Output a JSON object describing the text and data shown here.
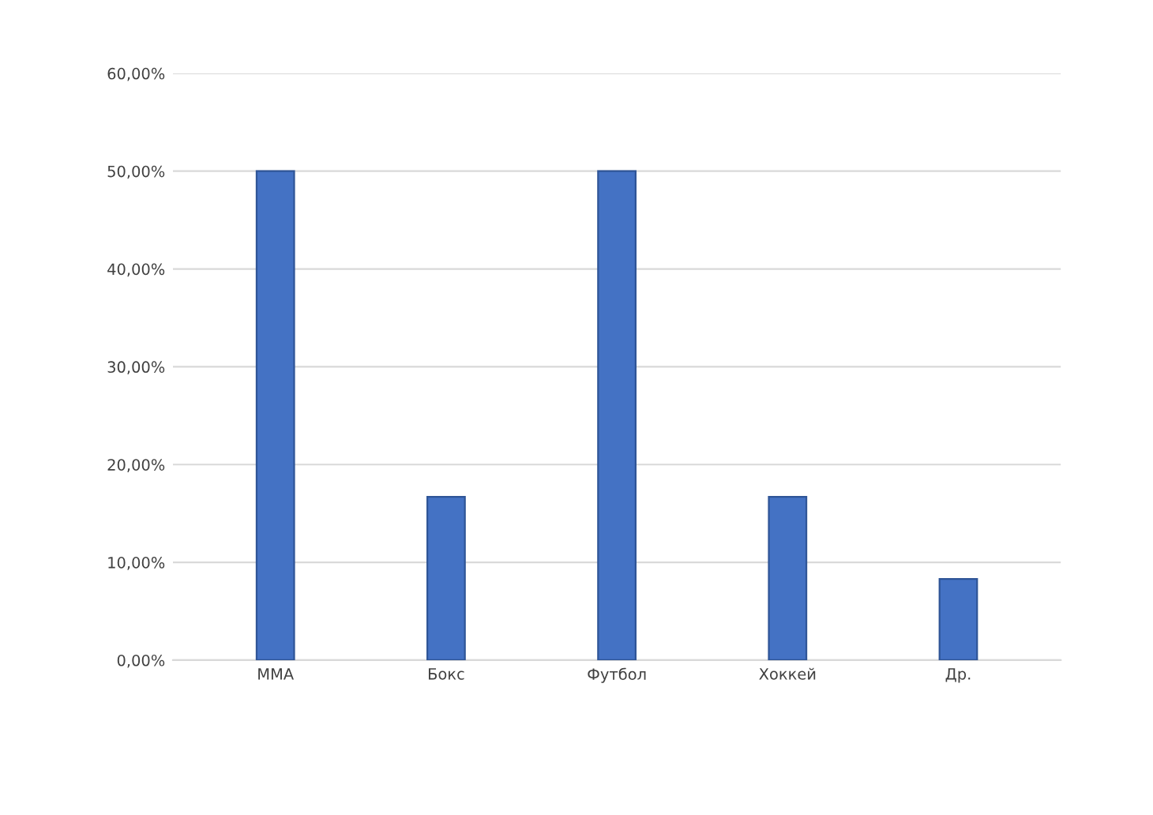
{
  "chart_data": {
    "type": "bar",
    "categories": [
      "MMA",
      "Бокс",
      "Футбол",
      "Хоккей",
      "Др."
    ],
    "values": [
      50,
      16.7,
      50,
      16.7,
      8.3
    ],
    "color": "#4472c4",
    "ylim": [
      0,
      60
    ],
    "yticks": [
      {
        "value": 0,
        "label": "0,00%"
      },
      {
        "value": 10,
        "label": "10,00%"
      },
      {
        "value": 20,
        "label": "20,00%"
      },
      {
        "value": 30,
        "label": "30,00%"
      },
      {
        "value": 40,
        "label": "40,00%"
      },
      {
        "value": 50,
        "label": "50,00%"
      },
      {
        "value": 60,
        "label": "60,00%"
      }
    ],
    "grid": "y",
    "legend": false
  }
}
